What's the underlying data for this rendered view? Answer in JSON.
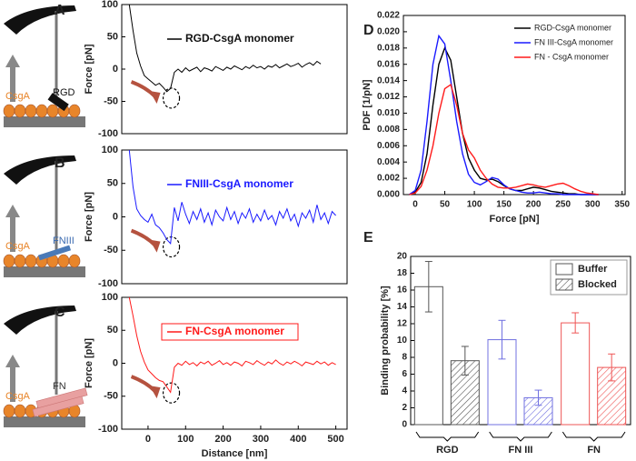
{
  "cartoons": [
    {
      "substrate": "CsgA",
      "ligand": "RGD"
    },
    {
      "substrate": "CsgA",
      "ligand": "FNIII"
    },
    {
      "substrate": "CsgA",
      "ligand": "FN"
    }
  ],
  "chart_data": [
    {
      "label": "A",
      "type": "line",
      "ylabel": "Force [pN]",
      "legend": "upper center",
      "x": [
        -50,
        -40,
        -30,
        -20,
        -10,
        0,
        10,
        20,
        30,
        40,
        50,
        60,
        70,
        80,
        90,
        100,
        110,
        120,
        130,
        140,
        150,
        160,
        170,
        180,
        190,
        200,
        210,
        220,
        230,
        240,
        250,
        260,
        270,
        280,
        290,
        300,
        310,
        320,
        330,
        340,
        350,
        360,
        370,
        380,
        390,
        400,
        410,
        420,
        430,
        440,
        450,
        460
      ],
      "series": [
        {
          "name": "RGD-CsgA monomer",
          "color": "#000000",
          "values": [
            100,
            60,
            25,
            5,
            -10,
            -15,
            -20,
            -25,
            -22,
            -28,
            -35,
            -30,
            -5,
            0,
            -5,
            2,
            -3,
            0,
            3,
            -4,
            2,
            0,
            -3,
            4,
            1,
            -2,
            3,
            0,
            5,
            2,
            -1,
            4,
            1,
            6,
            2,
            4,
            0,
            5,
            3,
            7,
            2,
            5,
            8,
            4,
            6,
            9,
            3,
            7,
            10,
            6,
            12,
            8
          ]
        }
      ],
      "xlim": [
        -70,
        530
      ],
      "ylim": [
        -100,
        100
      ],
      "yticks": [
        -100,
        -50,
        0,
        50,
        100
      ]
    },
    {
      "label": "B",
      "type": "line",
      "ylabel": "Force [pN]",
      "legend": "upper center",
      "x": [
        -50,
        -40,
        -30,
        -20,
        -10,
        0,
        10,
        20,
        30,
        40,
        50,
        60,
        70,
        80,
        90,
        100,
        110,
        120,
        130,
        140,
        150,
        160,
        170,
        180,
        190,
        200,
        210,
        220,
        230,
        240,
        250,
        260,
        270,
        280,
        290,
        300,
        310,
        320,
        330,
        340,
        350,
        360,
        370,
        380,
        390,
        400,
        410,
        420,
        430,
        440,
        450,
        460,
        470,
        480,
        490,
        500
      ],
      "series": [
        {
          "name": "FNIII-CsgA monomer",
          "color": "#1a1aff",
          "values": [
            100,
            45,
            12,
            2,
            -4,
            -8,
            4,
            -12,
            -16,
            -24,
            -34,
            -40,
            14,
            -6,
            22,
            4,
            -10,
            8,
            -4,
            12,
            -8,
            6,
            -12,
            10,
            0,
            -6,
            14,
            -4,
            8,
            -10,
            6,
            -2,
            12,
            -8,
            4,
            -6,
            10,
            -4,
            2,
            -12,
            8,
            -2,
            12,
            -6,
            4,
            -14,
            6,
            -2,
            10,
            -8,
            18,
            -4,
            6,
            -10,
            8,
            2
          ]
        }
      ],
      "xlim": [
        -70,
        530
      ],
      "ylim": [
        -100,
        100
      ],
      "yticks": [
        -100,
        -50,
        0,
        50,
        100
      ]
    },
    {
      "label": "C",
      "type": "line",
      "ylabel": "Force [pN]",
      "xlabel": "Distance [nm]",
      "legend": "upper center",
      "legend_frame": true,
      "x": [
        -50,
        -40,
        -30,
        -20,
        -10,
        0,
        10,
        20,
        30,
        40,
        50,
        60,
        70,
        80,
        90,
        100,
        110,
        120,
        130,
        140,
        150,
        160,
        170,
        180,
        190,
        200,
        210,
        220,
        230,
        240,
        250,
        260,
        270,
        280,
        290,
        300,
        310,
        320,
        330,
        340,
        350,
        360,
        370,
        380,
        390,
        400,
        410,
        420,
        430,
        440,
        450,
        460,
        470,
        480,
        490,
        500
      ],
      "series": [
        {
          "name": "FN-CsgA monomer",
          "color": "#ff1a1a",
          "values": [
            100,
            72,
            42,
            18,
            2,
            -10,
            -16,
            -22,
            -26,
            -28,
            -36,
            -44,
            -6,
            0,
            -3,
            3,
            -2,
            1,
            -4,
            2,
            -1,
            3,
            -3,
            0,
            4,
            -2,
            1,
            -3,
            2,
            0,
            -4,
            3,
            1,
            -2,
            4,
            0,
            -3,
            2,
            -1,
            5,
            0,
            -3,
            2,
            -1,
            3,
            0,
            -4,
            2,
            0,
            -2,
            3,
            -1,
            2,
            -3,
            1,
            -2
          ]
        }
      ],
      "xlim": [
        -70,
        530
      ],
      "xticks": [
        0,
        100,
        200,
        300,
        400,
        500
      ],
      "ylim": [
        -100,
        100
      ],
      "yticks": [
        -100,
        -50,
        0,
        50,
        100
      ]
    },
    {
      "label": "D",
      "type": "line",
      "ylabel": "PDF [1/pN]",
      "xlabel": "Force [pN]",
      "legend": "upper right",
      "x": [
        -10,
        0,
        10,
        20,
        30,
        40,
        50,
        60,
        70,
        80,
        90,
        100,
        110,
        120,
        130,
        140,
        150,
        160,
        170,
        180,
        190,
        200,
        210,
        220,
        230,
        240,
        250,
        260,
        270,
        280,
        290,
        300,
        310
      ],
      "series": [
        {
          "name": "RGD-CsgA monomer",
          "color": "#000000",
          "values": [
            0,
            0.0003,
            0.0015,
            0.005,
            0.011,
            0.016,
            0.018,
            0.0165,
            0.012,
            0.0075,
            0.0045,
            0.003,
            0.002,
            0.0018,
            0.0019,
            0.0016,
            0.0011,
            0.0007,
            0.0005,
            0.0005,
            0.0007,
            0.0009,
            0.0008,
            0.0006,
            0.0004,
            0.0003,
            0.0002,
            0.0001,
            0.0001,
            0,
            0,
            0,
            0
          ]
        },
        {
          "name": "FN III-CsgA monomer",
          "color": "#1a1aff",
          "values": [
            0,
            0.0005,
            0.003,
            0.009,
            0.016,
            0.0195,
            0.0185,
            0.014,
            0.009,
            0.005,
            0.0025,
            0.0015,
            0.0012,
            0.0016,
            0.0021,
            0.0019,
            0.0012,
            0.0007,
            0.0005,
            0.0003,
            0.0002,
            0.0002,
            0.0003,
            0.0002,
            0.0001,
            0.0001,
            0,
            0,
            0,
            0,
            0,
            0,
            0
          ]
        },
        {
          "name": "FN - CsgA monomer",
          "color": "#ff1a1a",
          "values": [
            0,
            0.0002,
            0.001,
            0.003,
            0.006,
            0.01,
            0.013,
            0.0135,
            0.011,
            0.0075,
            0.0055,
            0.0045,
            0.003,
            0.002,
            0.0013,
            0.0009,
            0.0008,
            0.0008,
            0.0009,
            0.0011,
            0.0013,
            0.0012,
            0.001,
            0.0009,
            0.0011,
            0.0013,
            0.0014,
            0.0011,
            0.0007,
            0.0004,
            0.0002,
            0.0001,
            0
          ]
        }
      ],
      "xlim": [
        -20,
        355
      ],
      "xticks": [
        0,
        50,
        100,
        150,
        200,
        250,
        300,
        350
      ],
      "ylim": [
        0,
        0.022
      ],
      "yticks": [
        {
          "value": 0,
          "label": "0.000"
        },
        {
          "value": 0.002,
          "label": "0.002"
        },
        {
          "value": 0.004,
          "label": "0.004"
        },
        {
          "value": 0.006,
          "label": "0.006"
        },
        {
          "value": 0.008,
          "label": "0.008"
        },
        {
          "value": 0.01,
          "label": "0.010"
        },
        {
          "value": 0.012,
          "label": "0.012"
        },
        {
          "value": 0.014,
          "label": "0.014"
        },
        {
          "value": 0.016,
          "label": "0.016"
        },
        {
          "value": 0.018,
          "label": "0.018"
        },
        {
          "value": 0.02,
          "label": "0.020"
        },
        {
          "value": 0.022,
          "label": "0.022"
        }
      ]
    },
    {
      "label": "E",
      "type": "bar",
      "ylabel": "Binding probability [%]",
      "legend": "upper right",
      "categories": [
        "RGD",
        "FN III",
        "FN"
      ],
      "category_colors": [
        "#555555",
        "#7070e0",
        "#ee5555"
      ],
      "series": [
        {
          "name": "Buffer",
          "values": [
            16.4,
            10.1,
            12.1
          ],
          "errors": [
            3.0,
            2.3,
            1.2
          ]
        },
        {
          "name": "Blocked",
          "values": [
            7.6,
            3.2,
            6.8
          ],
          "errors": [
            1.7,
            0.9,
            1.6
          ]
        }
      ],
      "ylim": [
        0,
        20
      ],
      "yticks": [
        0,
        2,
        4,
        6,
        8,
        10,
        12,
        14,
        16,
        18,
        20
      ]
    }
  ]
}
